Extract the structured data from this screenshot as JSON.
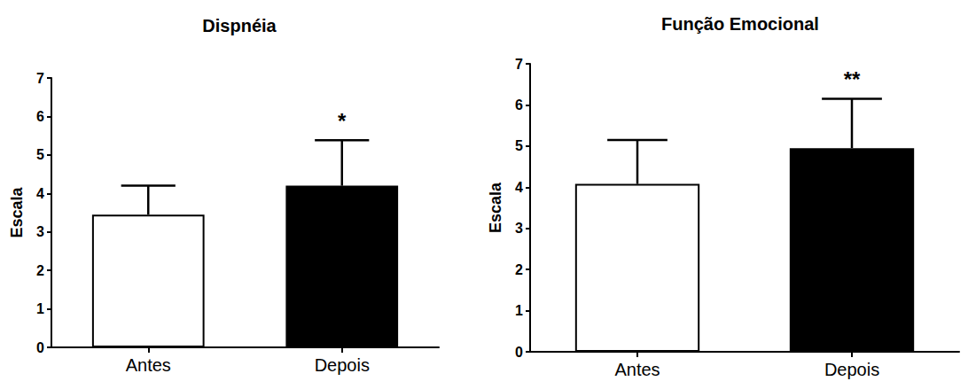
{
  "chart_data": [
    {
      "type": "bar",
      "title": "Dispnéia",
      "y_label": "Escala",
      "categories": [
        "Antes",
        "Depois"
      ],
      "values": [
        3.45,
        4.2
      ],
      "errors": [
        0.75,
        1.18
      ],
      "colors": [
        "#ffffff",
        "#000000"
      ],
      "ylim": [
        0,
        7
      ],
      "yticks": [
        0,
        1,
        2,
        3,
        4,
        5,
        6,
        7
      ],
      "grid": false,
      "annotations": [
        {
          "category": "Depois",
          "text": "*"
        }
      ]
    },
    {
      "type": "bar",
      "title": "Função Emocional",
      "y_label": "Escala",
      "categories": [
        "Antes",
        "Depois"
      ],
      "values": [
        4.08,
        4.95
      ],
      "errors": [
        1.07,
        1.2
      ],
      "colors": [
        "#ffffff",
        "#000000"
      ],
      "ylim": [
        0,
        7
      ],
      "yticks": [
        0,
        1,
        2,
        3,
        4,
        5,
        6,
        7
      ],
      "grid": false,
      "annotations": [
        {
          "category": "Depois",
          "text": "**"
        }
      ]
    }
  ]
}
